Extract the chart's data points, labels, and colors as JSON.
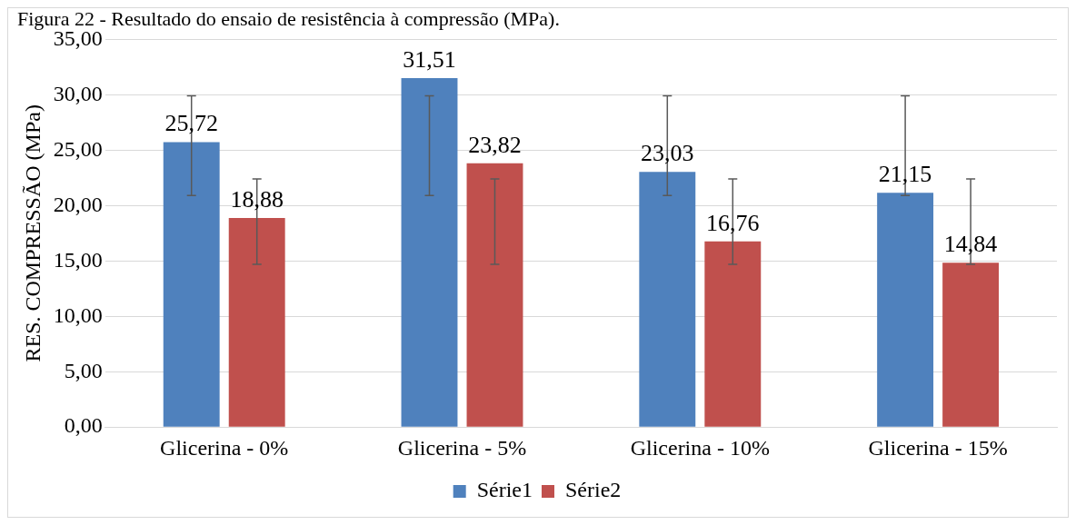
{
  "chart_data": {
    "type": "bar",
    "title": "Figura 22 - Resultado do ensaio de resistência à compressão (MPa).",
    "ylabel": "RES. COMPRESSÃO (MPa)",
    "categories": [
      "Glicerina - 0%",
      "Glicerina - 5%",
      "Glicerina - 10%",
      "Glicerina - 15%"
    ],
    "series": [
      {
        "name": "Série1",
        "color": "#4f81bd",
        "values": [
          25.72,
          31.51,
          23.03,
          21.15
        ],
        "value_labels": [
          "25,72",
          "31,51",
          "23,03",
          "21,15"
        ],
        "errors": [
          [
            20.9,
            29.9
          ],
          [
            20.9,
            29.9
          ],
          [
            20.9,
            29.9
          ],
          [
            20.9,
            29.9
          ]
        ]
      },
      {
        "name": "Série2",
        "color": "#c0504d",
        "values": [
          18.88,
          23.82,
          16.76,
          14.84
        ],
        "value_labels": [
          "18,88",
          "23,82",
          "16,76",
          "14,84"
        ],
        "errors": [
          [
            14.7,
            22.4
          ],
          [
            14.7,
            22.4
          ],
          [
            14.7,
            22.4
          ],
          [
            14.7,
            22.4
          ]
        ]
      }
    ],
    "ylim": [
      0,
      35
    ],
    "yticks": [
      {
        "value": 0,
        "label": "0,00"
      },
      {
        "value": 5,
        "label": "5,00"
      },
      {
        "value": 10,
        "label": "10,00"
      },
      {
        "value": 15,
        "label": "15,00"
      },
      {
        "value": 20,
        "label": "20,00"
      },
      {
        "value": 25,
        "label": "25,00"
      },
      {
        "value": 30,
        "label": "30,00"
      },
      {
        "value": 35,
        "label": "35,00"
      }
    ],
    "grid": "y",
    "legend": "bottom"
  }
}
